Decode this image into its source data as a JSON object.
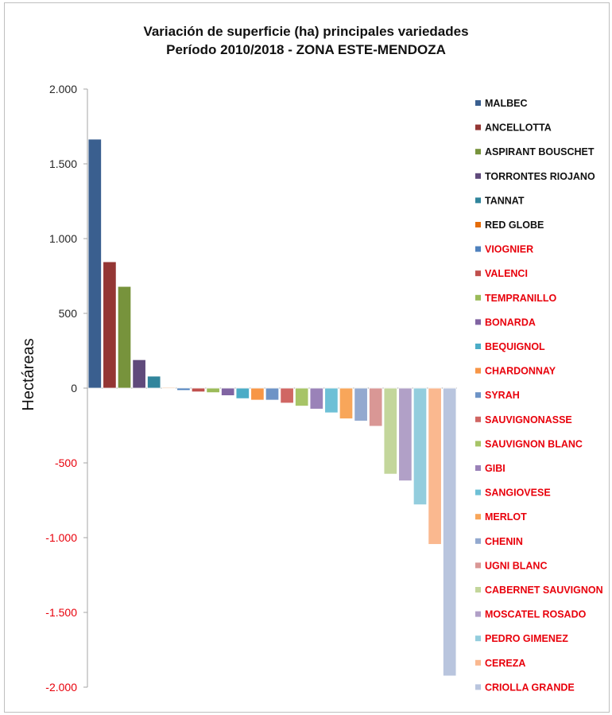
{
  "chart_data": {
    "type": "bar",
    "title": "Variación de superficie (ha) principales variedades",
    "subtitle": "Período 2010/2018 - ZONA ESTE-MENDOZA",
    "ylabel": "Hectáreas",
    "xlabel": "",
    "ylim": [
      -2000,
      2000
    ],
    "yticks": [
      {
        "value": 2000,
        "label": "2.000",
        "color": "#262626"
      },
      {
        "value": 1500,
        "label": "1.500",
        "color": "#262626"
      },
      {
        "value": 1000,
        "label": "1.000",
        "color": "#262626"
      },
      {
        "value": 500,
        "label": "500",
        "color": "#262626"
      },
      {
        "value": 0,
        "label": "0",
        "color": "#262626"
      },
      {
        "value": -500,
        "label": "-500",
        "color": "#e8000b"
      },
      {
        "value": -1000,
        "label": "-1.000",
        "color": "#e8000b"
      },
      {
        "value": -1500,
        "label": "-1.500",
        "color": "#e8000b"
      },
      {
        "value": -2000,
        "label": "-2.000",
        "color": "#e8000b"
      }
    ],
    "grid": false,
    "legend_position": "right",
    "categories": [
      "MALBEC",
      "ANCELLOTTA",
      "ASPIRANT BOUSCHET",
      "TORRONTES RIOJANO",
      "TANNAT",
      "RED GLOBE",
      "VIOGNIER",
      "VALENCI",
      "TEMPRANILLO",
      "BONARDA",
      "BEQUIGNOL",
      "CHARDONNAY",
      "SYRAH",
      "SAUVIGNONASSE",
      "SAUVIGNON BLANC",
      "GIBI",
      "SANGIOVESE",
      "MERLOT",
      "CHENIN",
      "UGNI BLANC",
      "CABERNET SAUVIGNON",
      "MOSCATEL ROSADO",
      "PEDRO GIMENEZ",
      "CEREZA",
      "CRIOLLA GRANDE"
    ],
    "values": [
      1665,
      845,
      680,
      190,
      80,
      3,
      -15,
      -25,
      -30,
      -50,
      -70,
      -80,
      -80,
      -100,
      -120,
      -140,
      -165,
      -205,
      -220,
      -255,
      -575,
      -620,
      -780,
      -1045,
      -1925
    ],
    "colors": [
      "#3a5f8f",
      "#943634",
      "#77933c",
      "#5f4a7b",
      "#31859c",
      "#e46c0a",
      "#4f81bd",
      "#c0504d",
      "#9bbb59",
      "#8064a2",
      "#4bacc6",
      "#f79646",
      "#6d93c6",
      "#d06663",
      "#a7c467",
      "#9a82b8",
      "#6ec0d6",
      "#f8a65a",
      "#93a9cf",
      "#d99795",
      "#c3d69b",
      "#b1a0c7",
      "#93cddd",
      "#fab88f",
      "#b9c5de"
    ],
    "legend_label_colors": [
      "#111111",
      "#111111",
      "#111111",
      "#111111",
      "#111111",
      "#111111",
      "#e8000b",
      "#e8000b",
      "#e8000b",
      "#e8000b",
      "#e8000b",
      "#e8000b",
      "#e8000b",
      "#e8000b",
      "#e8000b",
      "#e8000b",
      "#e8000b",
      "#e8000b",
      "#e8000b",
      "#e8000b",
      "#e8000b",
      "#e8000b",
      "#e8000b",
      "#e8000b",
      "#e8000b"
    ]
  }
}
